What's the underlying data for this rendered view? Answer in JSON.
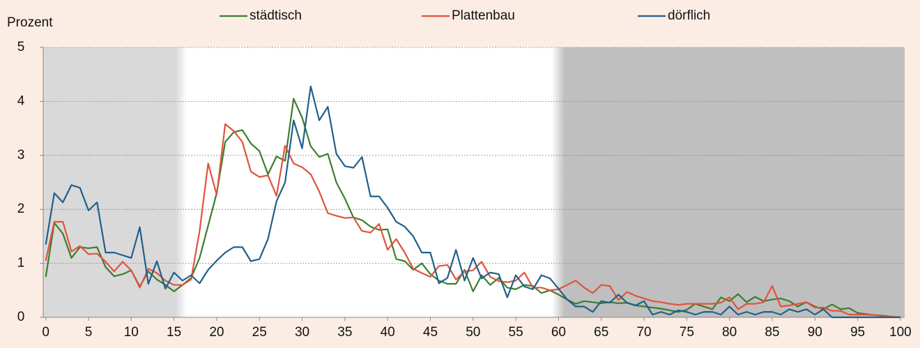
{
  "chart_data": {
    "type": "line",
    "ylabel": "Prozent",
    "x": [
      0,
      1,
      2,
      3,
      4,
      5,
      6,
      7,
      8,
      9,
      10,
      11,
      12,
      13,
      14,
      15,
      16,
      17,
      18,
      19,
      20,
      21,
      22,
      23,
      24,
      25,
      26,
      27,
      28,
      29,
      30,
      31,
      32,
      33,
      34,
      35,
      36,
      37,
      38,
      39,
      40,
      41,
      42,
      43,
      44,
      45,
      46,
      47,
      48,
      49,
      50,
      51,
      52,
      53,
      54,
      55,
      56,
      57,
      58,
      59,
      60,
      61,
      62,
      63,
      64,
      65,
      66,
      67,
      68,
      69,
      70,
      71,
      72,
      73,
      74,
      75,
      76,
      77,
      78,
      79,
      80,
      81,
      82,
      83,
      84,
      85,
      86,
      87,
      88,
      89,
      90,
      91,
      92,
      93,
      94,
      95,
      96,
      97,
      98,
      99,
      100
    ],
    "series": [
      {
        "name": "städtisch",
        "color": "#3b7d2e",
        "values": [
          0.75,
          1.75,
          1.55,
          1.1,
          1.3,
          1.28,
          1.3,
          0.93,
          0.76,
          0.8,
          0.87,
          0.57,
          0.85,
          0.7,
          0.6,
          0.48,
          0.6,
          0.73,
          1.1,
          1.7,
          2.3,
          3.25,
          3.43,
          3.47,
          3.22,
          3.08,
          2.65,
          2.98,
          2.9,
          4.05,
          3.7,
          3.17,
          2.97,
          3.03,
          2.5,
          2.2,
          1.85,
          1.8,
          1.68,
          1.62,
          1.63,
          1.08,
          1.04,
          0.88,
          1.0,
          0.8,
          0.68,
          0.62,
          0.62,
          0.88,
          0.48,
          0.78,
          0.6,
          0.73,
          0.55,
          0.52,
          0.6,
          0.58,
          0.45,
          0.5,
          0.42,
          0.33,
          0.25,
          0.3,
          0.28,
          0.26,
          0.28,
          0.26,
          0.27,
          0.22,
          0.2,
          0.18,
          0.16,
          0.13,
          0.1,
          0.14,
          0.25,
          0.2,
          0.15,
          0.37,
          0.3,
          0.43,
          0.28,
          0.38,
          0.3,
          0.33,
          0.35,
          0.3,
          0.2,
          0.28,
          0.2,
          0.15,
          0.24,
          0.15,
          0.17,
          0.08,
          0.06,
          0.04,
          0.03,
          0.01,
          0
        ]
      },
      {
        "name": "Plattenbau",
        "color": "#e0533a",
        "values": [
          1.05,
          1.77,
          1.77,
          1.22,
          1.32,
          1.17,
          1.18,
          1.03,
          0.85,
          1.03,
          0.87,
          0.55,
          0.9,
          0.82,
          0.68,
          0.6,
          0.6,
          0.7,
          1.6,
          2.85,
          2.27,
          3.58,
          3.45,
          3.25,
          2.7,
          2.6,
          2.63,
          2.25,
          3.18,
          2.85,
          2.78,
          2.65,
          2.33,
          1.93,
          1.88,
          1.84,
          1.85,
          1.6,
          1.57,
          1.73,
          1.25,
          1.45,
          1.2,
          0.9,
          0.82,
          0.75,
          0.95,
          0.97,
          0.7,
          0.85,
          0.87,
          1.03,
          0.75,
          0.67,
          0.65,
          0.68,
          0.83,
          0.55,
          0.55,
          0.5,
          0.52,
          0.6,
          0.68,
          0.55,
          0.45,
          0.6,
          0.58,
          0.32,
          0.47,
          0.4,
          0.35,
          0.3,
          0.28,
          0.25,
          0.23,
          0.25,
          0.25,
          0.25,
          0.25,
          0.27,
          0.37,
          0.15,
          0.25,
          0.25,
          0.28,
          0.58,
          0.2,
          0.22,
          0.25,
          0.28,
          0.18,
          0.18,
          0.12,
          0.12,
          0.05,
          0.05,
          0.05,
          0.04,
          0.02,
          0.01,
          0
        ]
      },
      {
        "name": "dörflich",
        "color": "#1f5f8b",
        "values": [
          1.35,
          2.3,
          2.13,
          2.45,
          2.4,
          1.98,
          2.13,
          1.2,
          1.2,
          1.15,
          1.1,
          1.67,
          0.62,
          1.04,
          0.53,
          0.83,
          0.68,
          0.78,
          0.63,
          0.88,
          1.05,
          1.2,
          1.3,
          1.3,
          1.04,
          1.08,
          1.45,
          2.15,
          2.5,
          3.65,
          3.13,
          4.28,
          3.65,
          3.9,
          3.03,
          2.8,
          2.77,
          2.97,
          2.24,
          2.24,
          2.03,
          1.77,
          1.68,
          1.5,
          1.2,
          1.2,
          0.63,
          0.73,
          1.25,
          0.68,
          1.1,
          0.72,
          0.83,
          0.8,
          0.37,
          0.78,
          0.57,
          0.52,
          0.78,
          0.72,
          0.53,
          0.33,
          0.2,
          0.2,
          0.1,
          0.3,
          0.27,
          0.42,
          0.27,
          0.22,
          0.3,
          0.05,
          0.1,
          0.05,
          0.13,
          0.1,
          0.05,
          0.1,
          0.1,
          0.05,
          0.2,
          0.05,
          0.1,
          0.05,
          0.1,
          0.1,
          0.05,
          0.15,
          0.1,
          0.15,
          0.05,
          0.15,
          0,
          0,
          0,
          0,
          0,
          0,
          0,
          0,
          0
        ]
      }
    ],
    "xlim": [
      -0.3,
      100.5
    ],
    "xticks": [
      0,
      5,
      10,
      15,
      20,
      25,
      30,
      35,
      40,
      45,
      50,
      55,
      60,
      65,
      70,
      75,
      80,
      85,
      90,
      95,
      100
    ],
    "ylim": [
      0,
      5
    ],
    "yticks": [
      0,
      1,
      2,
      3,
      4,
      5
    ],
    "grid": true,
    "legend": "top"
  }
}
